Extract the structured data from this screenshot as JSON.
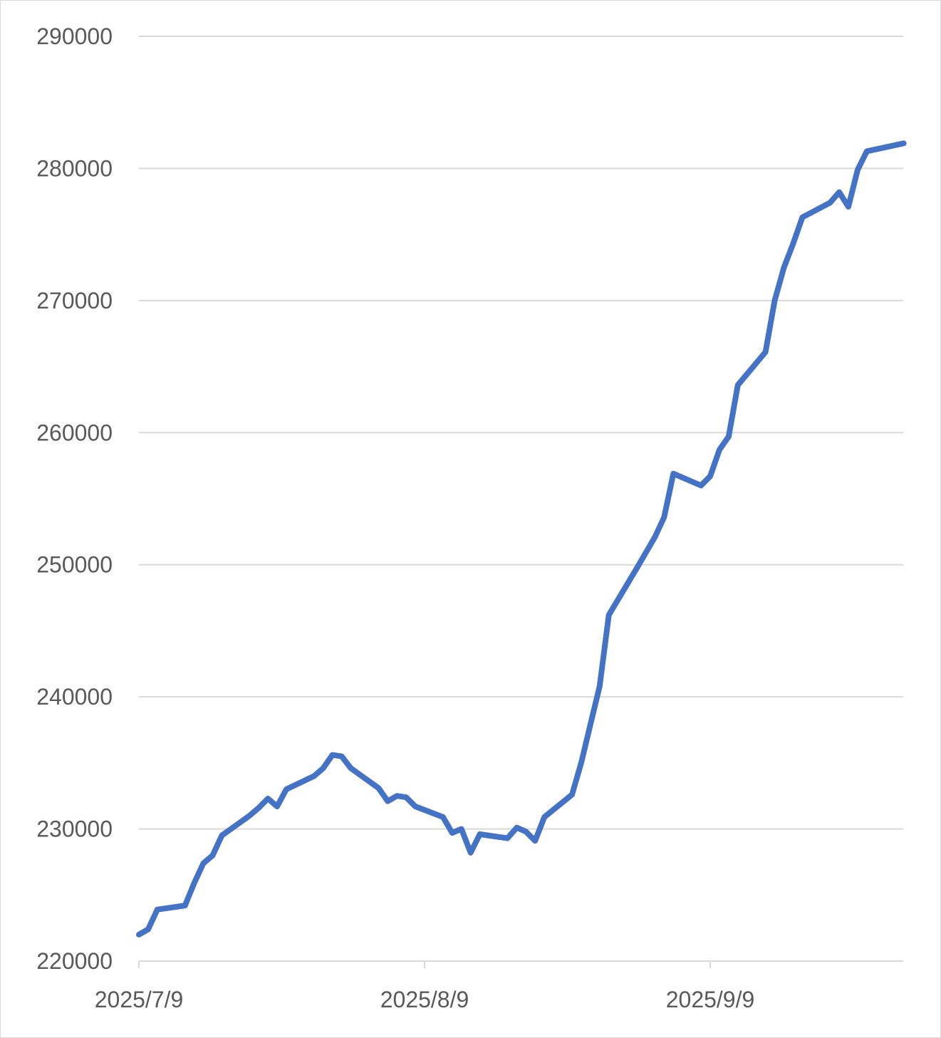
{
  "chart_data": {
    "type": "line",
    "title": "",
    "xlabel": "",
    "ylabel": "",
    "ylim": [
      220000,
      290000
    ],
    "yticks": [
      220000,
      230000,
      240000,
      250000,
      260000,
      270000,
      280000,
      290000
    ],
    "ytick_labels": [
      "220000",
      "230000",
      "240000",
      "250000",
      "260000",
      "270000",
      "280000",
      "290000"
    ],
    "xlim": [
      "2025-07-09",
      "2025-09-30"
    ],
    "xticks": [
      "2025-07-09",
      "2025-08-09",
      "2025-09-09"
    ],
    "xtick_labels": [
      "2025/7/9",
      "2025/8/9",
      "2025/9/9"
    ],
    "grid": "horizontal",
    "legend": "none",
    "series": [
      {
        "color": "#4472c4",
        "points": [
          [
            "2025-07-09",
            222000
          ],
          [
            "2025-07-10",
            222400
          ],
          [
            "2025-07-11",
            223900
          ],
          [
            "2025-07-14",
            224200
          ],
          [
            "2025-07-15",
            225900
          ],
          [
            "2025-07-16",
            227400
          ],
          [
            "2025-07-17",
            228000
          ],
          [
            "2025-07-18",
            229500
          ],
          [
            "2025-07-21",
            231000
          ],
          [
            "2025-07-22",
            231600
          ],
          [
            "2025-07-23",
            232300
          ],
          [
            "2025-07-24",
            231700
          ],
          [
            "2025-07-25",
            233000
          ],
          [
            "2025-07-28",
            234000
          ],
          [
            "2025-07-29",
            234600
          ],
          [
            "2025-07-30",
            235600
          ],
          [
            "2025-07-31",
            235500
          ],
          [
            "2025-08-01",
            234600
          ],
          [
            "2025-08-04",
            233100
          ],
          [
            "2025-08-05",
            232100
          ],
          [
            "2025-08-06",
            232500
          ],
          [
            "2025-08-07",
            232400
          ],
          [
            "2025-08-08",
            231700
          ],
          [
            "2025-08-11",
            230900
          ],
          [
            "2025-08-12",
            229700
          ],
          [
            "2025-08-13",
            230000
          ],
          [
            "2025-08-14",
            228200
          ],
          [
            "2025-08-15",
            229600
          ],
          [
            "2025-08-18",
            229300
          ],
          [
            "2025-08-19",
            230100
          ],
          [
            "2025-08-20",
            229800
          ],
          [
            "2025-08-21",
            229100
          ],
          [
            "2025-08-22",
            230900
          ],
          [
            "2025-08-25",
            232600
          ],
          [
            "2025-08-26",
            235000
          ],
          [
            "2025-08-27",
            237900
          ],
          [
            "2025-08-28",
            240800
          ],
          [
            "2025-08-29",
            246200
          ],
          [
            "2025-09-01",
            249700
          ],
          [
            "2025-09-02",
            250900
          ],
          [
            "2025-09-03",
            252100
          ],
          [
            "2025-09-04",
            253600
          ],
          [
            "2025-09-05",
            256900
          ],
          [
            "2025-09-08",
            256000
          ],
          [
            "2025-09-09",
            256700
          ],
          [
            "2025-09-10",
            258700
          ],
          [
            "2025-09-11",
            259700
          ],
          [
            "2025-09-12",
            263600
          ],
          [
            "2025-09-15",
            266100
          ],
          [
            "2025-09-16",
            270000
          ],
          [
            "2025-09-17",
            272500
          ],
          [
            "2025-09-18",
            274300
          ],
          [
            "2025-09-19",
            276300
          ],
          [
            "2025-09-22",
            277400
          ],
          [
            "2025-09-23",
            278200
          ],
          [
            "2025-09-24",
            277100
          ],
          [
            "2025-09-25",
            279900
          ],
          [
            "2025-09-26",
            281300
          ],
          [
            "2025-09-30",
            281900
          ]
        ]
      }
    ]
  }
}
